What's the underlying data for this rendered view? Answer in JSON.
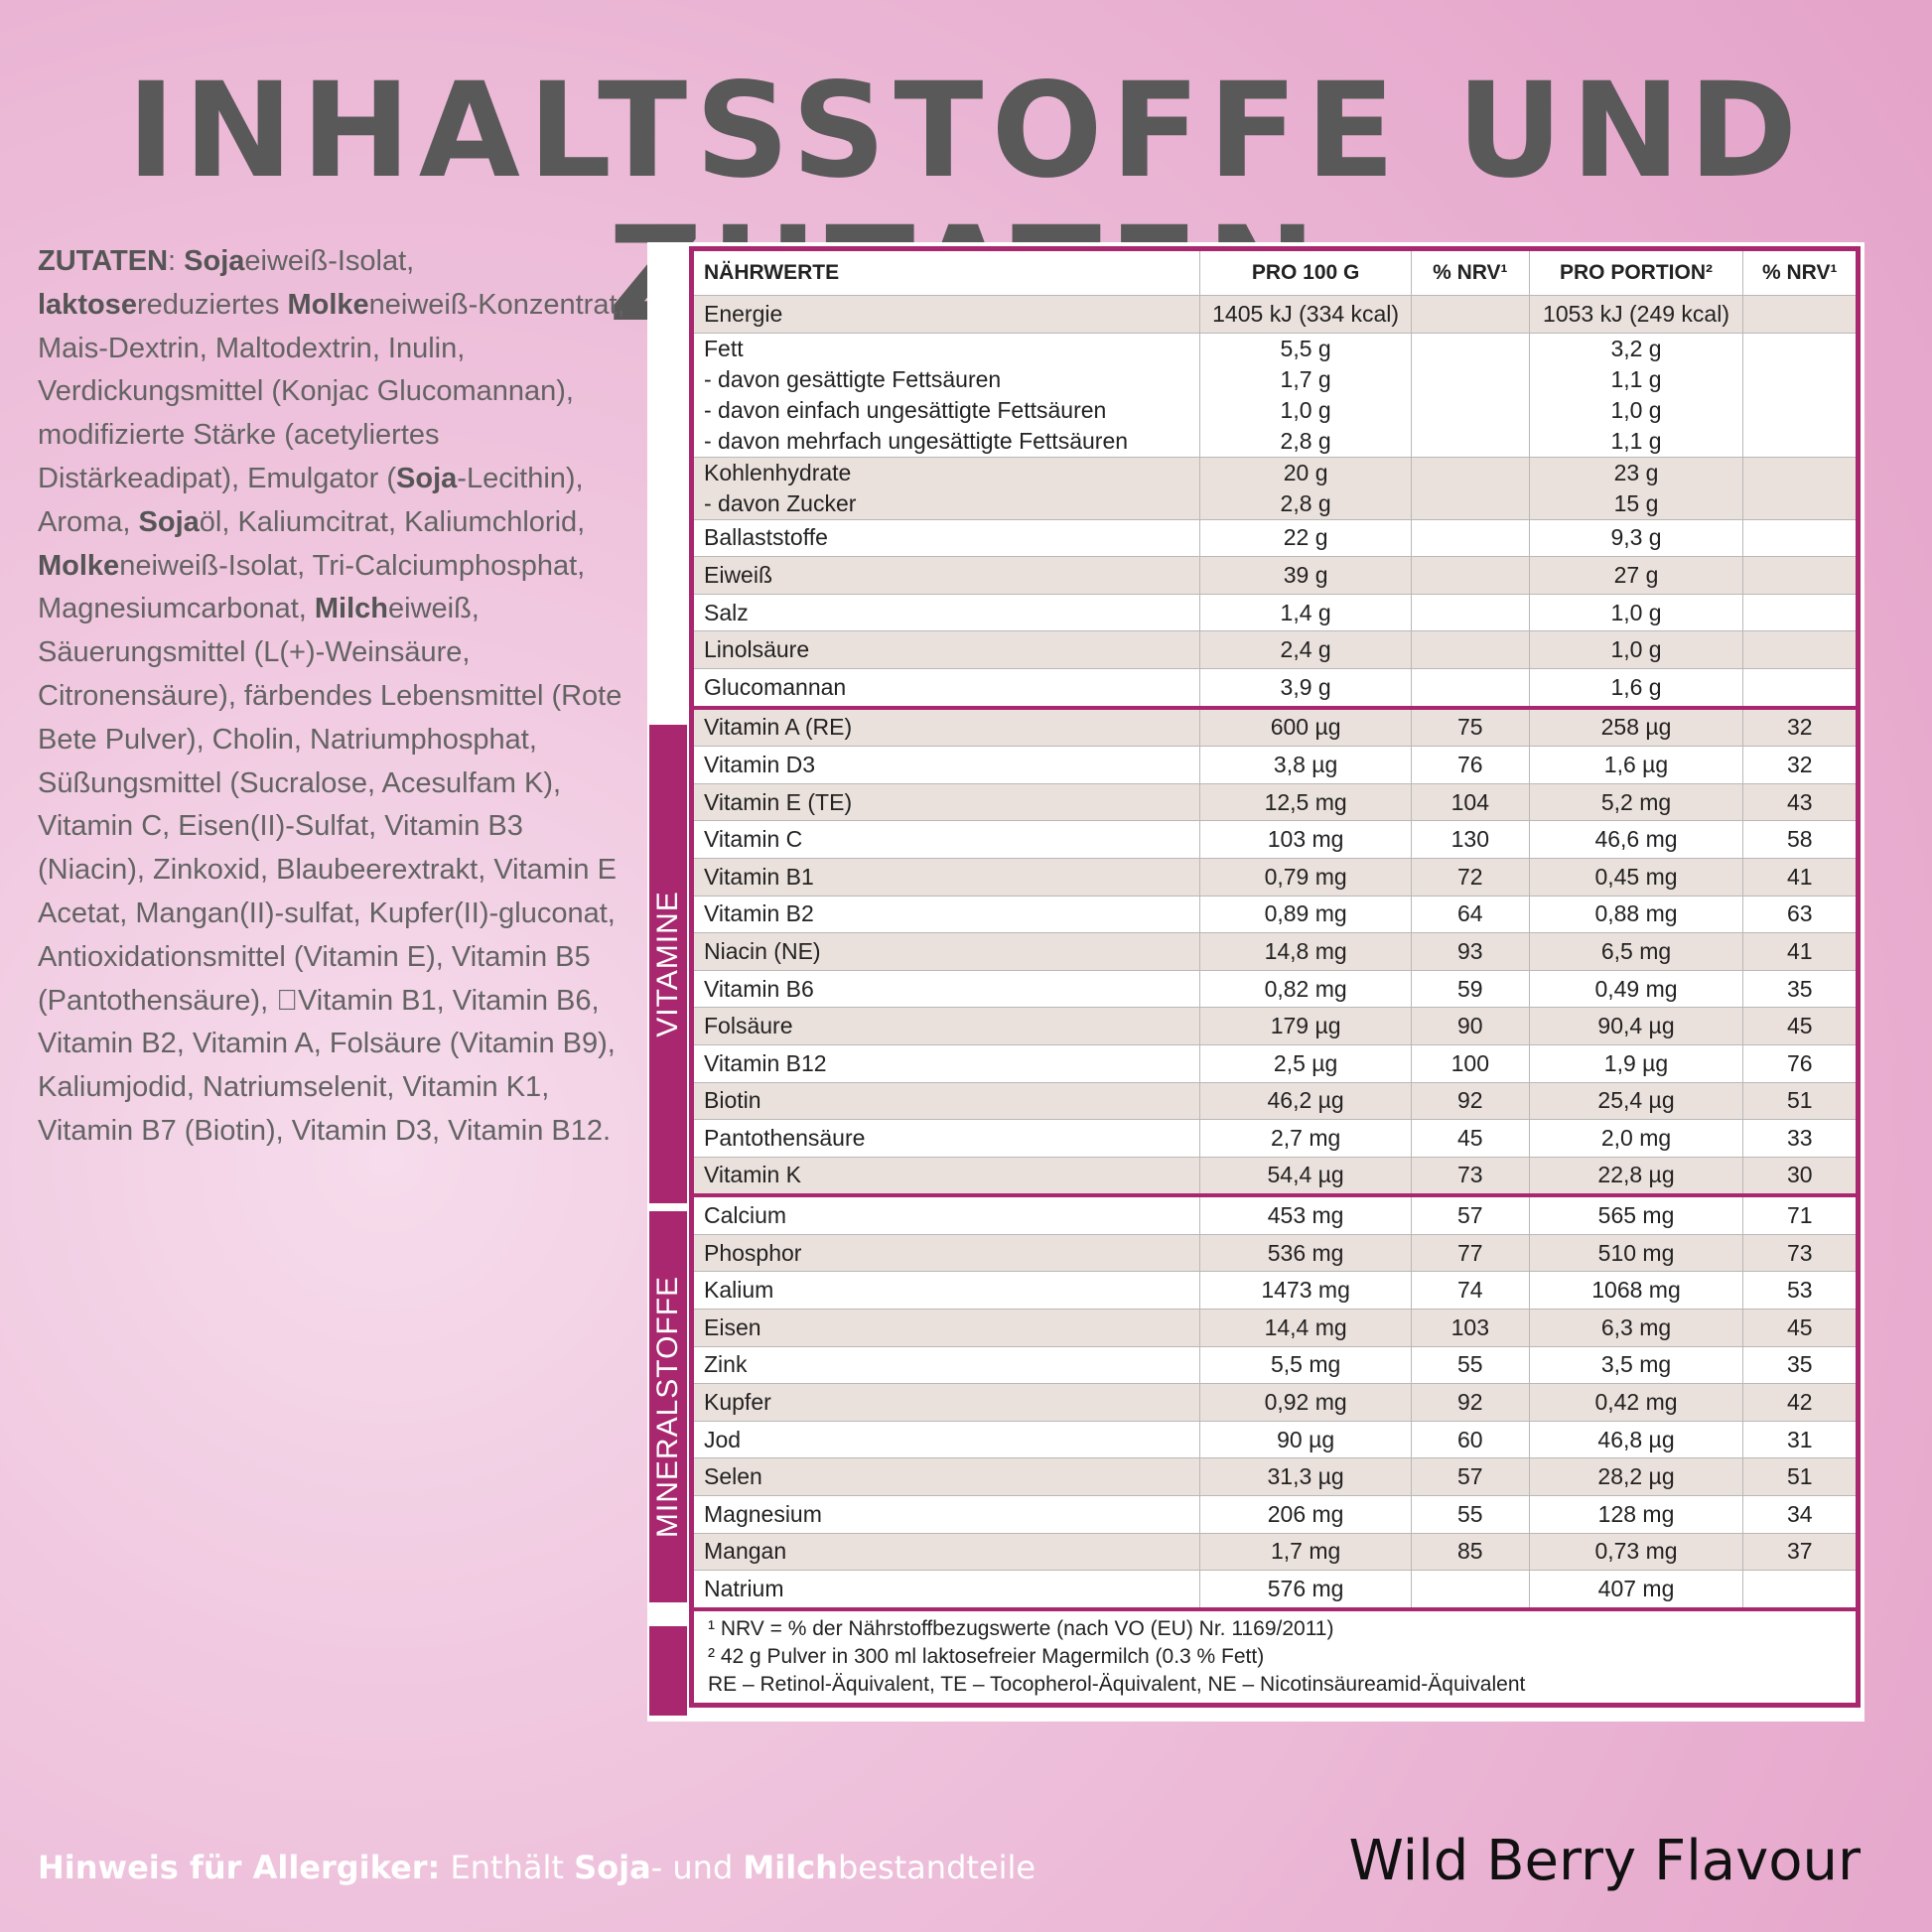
{
  "title": "INHALTSSTOFFE UND ZUTATEN",
  "ingredients": [
    {
      "t": "ZUTATEN",
      "b": true
    },
    {
      "t": ": "
    },
    {
      "t": "Soja",
      "b": true
    },
    {
      "t": "eiweiß-Isolat, "
    },
    {
      "t": "laktose",
      "b": true
    },
    {
      "t": "reduziertes "
    },
    {
      "t": "Molke",
      "b": true
    },
    {
      "t": "neiweiß-Konzentrat, Mais-Dextrin, Maltodextrin, Inulin, Verdickungsmittel (Konjac Glucomannan), modifizierte Stärke (acetyliertes Distärkeadipat), Emulgator ("
    },
    {
      "t": "Soja",
      "b": true
    },
    {
      "t": "-Lecithin), Aroma, "
    },
    {
      "t": "Soja",
      "b": true
    },
    {
      "t": "öl, Kaliumcitrat, Kaliumchlorid, "
    },
    {
      "t": "Molke",
      "b": true
    },
    {
      "t": "neiweiß-Isolat, Tri-Calciumphosphat, Magnesiumcarbonat, "
    },
    {
      "t": "Milch",
      "b": true
    },
    {
      "t": "eiweiß, Säuerungsmittel (L(+)-Weinsäure, Citronensäure), färbendes Lebensmittel (Rote Bete Pulver), Cholin, Natriumphosphat, Süßungsmittel (Sucralose, Acesulfam K), Vitamin C, Eisen(II)-Sulfat, Vitamin B3 (Niacin), Zinkoxid, Blaubeerextrakt, Vitamin E Acetat, Mangan(II)-sulfat, Kupfer(II)-gluconat, Antioxidationsmittel (Vitamin E), Vitamin B5 (Pantothensäure), \u0000Vitamin B1, Vitamin B6, Vitamin B2, Vitamin A, Folsäure (Vitamin B9), Kaliumjodid, Natriumselenit, Vitamin K1, Vitamin B7 (Biotin), Vitamin D3, Vitamin B12."
    }
  ],
  "table": {
    "headers": [
      "NÄHRWERTE",
      "PRO 100 G",
      "% NRV¹",
      "PRO PORTION²",
      "% NRV¹"
    ],
    "groups": {
      "vitamins": "VITAMINE",
      "minerals": "MINERALSTOFFE"
    },
    "rows": [
      {
        "name": [
          "Energie"
        ],
        "p100": [
          "1405 kJ (334 kcal)"
        ],
        "nrv100": "",
        "portion": [
          "1053 kJ (249 kcal)"
        ],
        "nrvp": "",
        "alt": true
      },
      {
        "name": [
          "Fett",
          "- davon gesättigte Fettsäuren",
          "- davon einfach ungesättigte Fettsäuren",
          "- davon mehrfach ungesättigte Fettsäuren"
        ],
        "p100": [
          "5,5 g",
          "1,7 g",
          "1,0 g",
          "2,8 g"
        ],
        "nrv100": "",
        "portion": [
          "3,2 g",
          "1,1 g",
          "1,0 g",
          "1,1 g"
        ],
        "nrvp": ""
      },
      {
        "name": [
          "Kohlenhydrate",
          "- davon Zucker"
        ],
        "p100": [
          "20 g",
          "2,8 g"
        ],
        "nrv100": "",
        "portion": [
          "23 g",
          "15 g"
        ],
        "nrvp": "",
        "alt": true
      },
      {
        "name": [
          "Ballaststoffe"
        ],
        "p100": [
          "22 g"
        ],
        "nrv100": "",
        "portion": [
          "9,3 g"
        ],
        "nrvp": ""
      },
      {
        "name": [
          "Eiweiß"
        ],
        "p100": [
          "39 g"
        ],
        "nrv100": "",
        "portion": [
          "27 g"
        ],
        "nrvp": "",
        "alt": true
      },
      {
        "name": [
          "Salz"
        ],
        "p100": [
          "1,4 g"
        ],
        "nrv100": "",
        "portion": [
          "1,0 g"
        ],
        "nrvp": ""
      },
      {
        "name": [
          "Linolsäure"
        ],
        "p100": [
          "2,4 g"
        ],
        "nrv100": "",
        "portion": [
          "1,0 g"
        ],
        "nrvp": "",
        "alt": true
      },
      {
        "name": [
          "Glucomannan"
        ],
        "p100": [
          "3,9 g"
        ],
        "nrv100": "",
        "portion": [
          "1,6 g"
        ],
        "nrvp": ""
      },
      {
        "name": [
          "Vitamin A (RE)"
        ],
        "p100": [
          "600 µg"
        ],
        "nrv100": "75",
        "portion": [
          "258 µg"
        ],
        "nrvp": "32",
        "alt": true,
        "sep": true
      },
      {
        "name": [
          "Vitamin D3"
        ],
        "p100": [
          "3,8 µg"
        ],
        "nrv100": "76",
        "portion": [
          "1,6 µg"
        ],
        "nrvp": "32"
      },
      {
        "name": [
          "Vitamin E (TE)"
        ],
        "p100": [
          "12,5 mg"
        ],
        "nrv100": "104",
        "portion": [
          "5,2 mg"
        ],
        "nrvp": "43",
        "alt": true
      },
      {
        "name": [
          "Vitamin C"
        ],
        "p100": [
          "103 mg"
        ],
        "nrv100": "130",
        "portion": [
          "46,6 mg"
        ],
        "nrvp": "58"
      },
      {
        "name": [
          "Vitamin B1"
        ],
        "p100": [
          "0,79 mg"
        ],
        "nrv100": "72",
        "portion": [
          "0,45 mg"
        ],
        "nrvp": "41",
        "alt": true
      },
      {
        "name": [
          "Vitamin B2"
        ],
        "p100": [
          "0,89 mg"
        ],
        "nrv100": "64",
        "portion": [
          "0,88 mg"
        ],
        "nrvp": "63"
      },
      {
        "name": [
          "Niacin (NE)"
        ],
        "p100": [
          "14,8 mg"
        ],
        "nrv100": "93",
        "portion": [
          "6,5 mg"
        ],
        "nrvp": "41",
        "alt": true
      },
      {
        "name": [
          "Vitamin B6"
        ],
        "p100": [
          "0,82 mg"
        ],
        "nrv100": "59",
        "portion": [
          "0,49 mg"
        ],
        "nrvp": "35"
      },
      {
        "name": [
          "Folsäure"
        ],
        "p100": [
          "179 µg"
        ],
        "nrv100": "90",
        "portion": [
          "90,4 µg"
        ],
        "nrvp": "45",
        "alt": true
      },
      {
        "name": [
          "Vitamin B12"
        ],
        "p100": [
          "2,5 µg"
        ],
        "nrv100": "100",
        "portion": [
          "1,9 µg"
        ],
        "nrvp": "76"
      },
      {
        "name": [
          "Biotin"
        ],
        "p100": [
          "46,2 µg"
        ],
        "nrv100": "92",
        "portion": [
          "25,4 µg"
        ],
        "nrvp": "51",
        "alt": true
      },
      {
        "name": [
          "Pantothensäure"
        ],
        "p100": [
          "2,7 mg"
        ],
        "nrv100": "45",
        "portion": [
          "2,0 mg"
        ],
        "nrvp": "33"
      },
      {
        "name": [
          "Vitamin K"
        ],
        "p100": [
          "54,4 µg"
        ],
        "nrv100": "73",
        "portion": [
          "22,8 µg"
        ],
        "nrvp": "30",
        "alt": true
      },
      {
        "name": [
          "Calcium"
        ],
        "p100": [
          "453 mg"
        ],
        "nrv100": "57",
        "portion": [
          "565 mg"
        ],
        "nrvp": "71",
        "sep": true
      },
      {
        "name": [
          "Phosphor"
        ],
        "p100": [
          "536 mg"
        ],
        "nrv100": "77",
        "portion": [
          "510 mg"
        ],
        "nrvp": "73",
        "alt": true
      },
      {
        "name": [
          "Kalium"
        ],
        "p100": [
          "1473 mg"
        ],
        "nrv100": "74",
        "portion": [
          "1068 mg"
        ],
        "nrvp": "53"
      },
      {
        "name": [
          "Eisen"
        ],
        "p100": [
          "14,4 mg"
        ],
        "nrv100": "103",
        "portion": [
          "6,3 mg"
        ],
        "nrvp": "45",
        "alt": true
      },
      {
        "name": [
          "Zink"
        ],
        "p100": [
          "5,5 mg"
        ],
        "nrv100": "55",
        "portion": [
          "3,5 mg"
        ],
        "nrvp": "35"
      },
      {
        "name": [
          "Kupfer"
        ],
        "p100": [
          "0,92 mg"
        ],
        "nrv100": "92",
        "portion": [
          "0,42 mg"
        ],
        "nrvp": "42",
        "alt": true
      },
      {
        "name": [
          "Jod"
        ],
        "p100": [
          "90 µg"
        ],
        "nrv100": "60",
        "portion": [
          "46,8 µg"
        ],
        "nrvp": "31"
      },
      {
        "name": [
          "Selen"
        ],
        "p100": [
          "31,3 µg"
        ],
        "nrv100": "57",
        "portion": [
          "28,2 µg"
        ],
        "nrvp": "51",
        "alt": true
      },
      {
        "name": [
          "Magnesium"
        ],
        "p100": [
          "206 mg"
        ],
        "nrv100": "55",
        "portion": [
          "128 mg"
        ],
        "nrvp": "34"
      },
      {
        "name": [
          "Mangan"
        ],
        "p100": [
          "1,7 mg"
        ],
        "nrv100": "85",
        "portion": [
          "0,73 mg"
        ],
        "nrvp": "37",
        "alt": true
      },
      {
        "name": [
          "Natrium"
        ],
        "p100": [
          "576 mg"
        ],
        "nrv100": "",
        "portion": [
          "407 mg"
        ],
        "nrvp": ""
      }
    ],
    "footnotes": [
      "¹ NRV = % der Nährstoffbezugswerte (nach VO (EU) Nr. 1169/2011)",
      "² 42 g Pulver in 300 ml laktosefreier Magermilch (0.3 % Fett)",
      "RE – Retinol-Äquivalent, TE – Tocopherol-Äquivalent, NE – Nicotinsäureamid-Äquivalent"
    ]
  },
  "allergy": [
    {
      "t": "Hinweis für Allergiker:",
      "b": true
    },
    {
      "t": " Enthält "
    },
    {
      "t": "Soja",
      "b": true
    },
    {
      "t": "- und "
    },
    {
      "t": "Milch",
      "b": true
    },
    {
      "t": "bestandteile"
    }
  ],
  "flavour": "Wild Berry Flavour",
  "colors": {
    "accent": "#a8276f",
    "row_alt": "#ebe1dc",
    "title": "#595959"
  }
}
